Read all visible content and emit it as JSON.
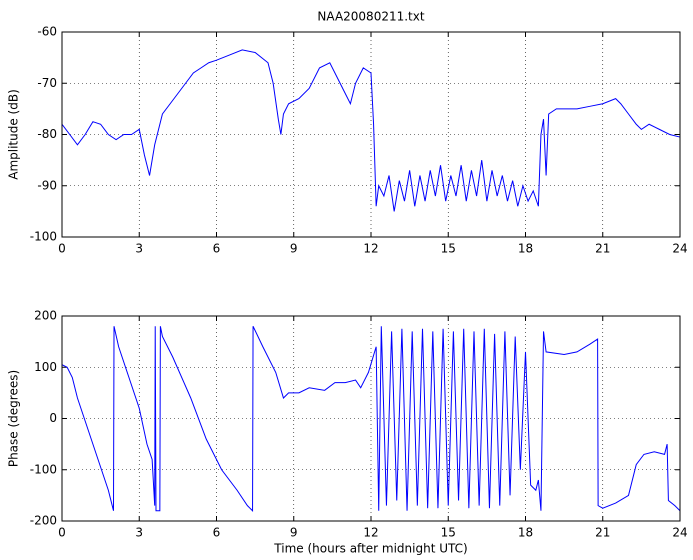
{
  "chart_data": [
    {
      "type": "line",
      "title": "NAA20080211.txt",
      "ylabel": "Amplitude (dB)",
      "color": "#0000ff",
      "grid": true,
      "xlim": [
        0,
        24
      ],
      "xticks": [
        0,
        3,
        6,
        9,
        12,
        15,
        18,
        21,
        24
      ],
      "ylim": [
        -100,
        -60
      ],
      "yticks": [
        -100,
        -90,
        -80,
        -70,
        -60
      ],
      "x": [
        0,
        0.3,
        0.6,
        0.9,
        1.2,
        1.5,
        1.8,
        2.1,
        2.4,
        2.7,
        3.0,
        3.2,
        3.4,
        3.6,
        3.9,
        4.2,
        4.5,
        4.8,
        5.1,
        5.4,
        5.7,
        6.0,
        6.5,
        7.0,
        7.5,
        8.0,
        8.2,
        8.4,
        8.5,
        8.6,
        8.8,
        9.2,
        9.6,
        10.0,
        10.4,
        10.7,
        11.0,
        11.2,
        11.4,
        11.7,
        12.0,
        12.1,
        12.2,
        12.3,
        12.5,
        12.7,
        12.9,
        13.1,
        13.3,
        13.5,
        13.7,
        13.9,
        14.1,
        14.3,
        14.5,
        14.7,
        14.9,
        15.1,
        15.3,
        15.5,
        15.7,
        15.9,
        16.1,
        16.3,
        16.5,
        16.7,
        16.9,
        17.1,
        17.3,
        17.5,
        17.7,
        17.9,
        18.1,
        18.3,
        18.5,
        18.6,
        18.7,
        18.8,
        18.9,
        19.2,
        19.5,
        20.0,
        20.5,
        21.0,
        21.5,
        21.7,
        22.0,
        22.3,
        22.5,
        22.8,
        23.2,
        23.6,
        24
      ],
      "values": [
        -78,
        -80,
        -82,
        -80,
        -77.5,
        -78,
        -80,
        -81,
        -80,
        -80,
        -79,
        -84,
        -88,
        -82,
        -76,
        -74,
        -72,
        -70,
        -68,
        -67,
        -66,
        -65.5,
        -64.5,
        -63.5,
        -64,
        -66,
        -70,
        -77,
        -80,
        -76,
        -74,
        -73,
        -71,
        -67,
        -66,
        -69,
        -72,
        -74,
        -70,
        -67,
        -68,
        -78,
        -94,
        -90,
        -92,
        -88,
        -95,
        -89,
        -93,
        -87,
        -94,
        -88,
        -93,
        -87,
        -92,
        -86,
        -93,
        -88,
        -92,
        -86,
        -93,
        -87,
        -92,
        -85,
        -93,
        -87,
        -92,
        -88,
        -93,
        -89,
        -94,
        -90,
        -93,
        -91,
        -94,
        -80,
        -77,
        -88,
        -76,
        -75,
        -75,
        -75,
        -74.5,
        -74,
        -73,
        -74,
        -76,
        -78,
        -79,
        -78,
        -79,
        -80,
        -80.5
      ]
    },
    {
      "type": "line",
      "xlabel": "Time (hours after midnight UTC)",
      "ylabel": "Phase (degrees)",
      "color": "#0000ff",
      "grid": true,
      "xlim": [
        0,
        24
      ],
      "xticks": [
        0,
        3,
        6,
        9,
        12,
        15,
        18,
        21,
        24
      ],
      "ylim": [
        -200,
        200
      ],
      "yticks": [
        -200,
        -100,
        0,
        100,
        200
      ],
      "x": [
        0,
        0.2,
        0.4,
        0.6,
        1.0,
        1.4,
        1.8,
        2.0,
        2.02,
        2.2,
        2.6,
        3.0,
        3.3,
        3.5,
        3.6,
        3.62,
        3.65,
        3.8,
        3.82,
        3.9,
        4.3,
        5.0,
        5.6,
        6.2,
        6.8,
        7.2,
        7.4,
        7.42,
        7.8,
        8.3,
        8.6,
        8.8,
        9.2,
        9.6,
        10.2,
        10.6,
        11.0,
        11.4,
        11.6,
        11.9,
        12.2,
        12.3,
        12.4,
        12.6,
        12.8,
        13.0,
        13.2,
        13.4,
        13.6,
        13.8,
        14.0,
        14.2,
        14.4,
        14.6,
        14.8,
        15.0,
        15.2,
        15.4,
        15.6,
        15.8,
        16.0,
        16.2,
        16.4,
        16.6,
        16.8,
        17.0,
        17.2,
        17.4,
        17.6,
        17.8,
        18.0,
        18.2,
        18.4,
        18.5,
        18.6,
        18.7,
        18.8,
        19.5,
        20.0,
        20.5,
        20.8,
        20.82,
        21.0,
        21.5,
        22.0,
        22.3,
        22.6,
        23.0,
        23.4,
        23.5,
        23.55,
        23.8,
        24
      ],
      "values": [
        105,
        100,
        80,
        40,
        -20,
        -80,
        -140,
        -180,
        180,
        140,
        80,
        20,
        -50,
        -80,
        -170,
        180,
        -180,
        -180,
        180,
        160,
        120,
        40,
        -40,
        -100,
        -140,
        -170,
        -180,
        180,
        140,
        90,
        40,
        50,
        50,
        60,
        55,
        70,
        70,
        75,
        60,
        90,
        140,
        -180,
        180,
        -170,
        170,
        -160,
        175,
        -180,
        170,
        -170,
        175,
        -175,
        170,
        -175,
        175,
        -170,
        170,
        -160,
        175,
        -175,
        170,
        -170,
        175,
        -175,
        165,
        -170,
        170,
        -150,
        160,
        -100,
        130,
        -130,
        -140,
        -120,
        -180,
        170,
        130,
        125,
        130,
        145,
        155,
        -170,
        -175,
        -165,
        -150,
        -90,
        -70,
        -65,
        -70,
        -50,
        -160,
        -170,
        -180
      ]
    }
  ]
}
